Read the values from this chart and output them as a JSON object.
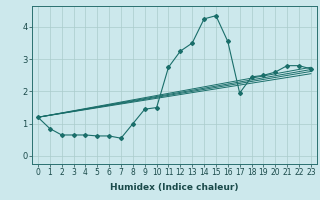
{
  "xlabel": "Humidex (Indice chaleur)",
  "background_color": "#cce8ec",
  "grid_color": "#aacccc",
  "line_color": "#1a6e6a",
  "x_data": [
    0,
    1,
    2,
    3,
    4,
    5,
    6,
    7,
    8,
    9,
    10,
    11,
    12,
    13,
    14,
    15,
    16,
    17,
    18,
    19,
    20,
    21,
    22,
    23
  ],
  "y_main": [
    1.2,
    0.85,
    0.65,
    0.65,
    0.65,
    0.62,
    0.62,
    0.55,
    1.0,
    1.45,
    1.5,
    2.75,
    3.25,
    3.5,
    4.25,
    4.35,
    3.55,
    1.95,
    2.45,
    2.5,
    2.6,
    2.8,
    2.8,
    2.7
  ],
  "line1_start": 1.2,
  "line1_end": 2.55,
  "line2_start": 1.2,
  "line2_end": 2.62,
  "line3_start": 1.2,
  "line3_end": 2.68,
  "line4_start": 1.2,
  "line4_end": 2.75,
  "ylim": [
    -0.25,
    4.65
  ],
  "xlim": [
    -0.5,
    23.5
  ],
  "yticks": [
    0,
    1,
    2,
    3,
    4
  ],
  "xticks": [
    0,
    1,
    2,
    3,
    4,
    5,
    6,
    7,
    8,
    9,
    10,
    11,
    12,
    13,
    14,
    15,
    16,
    17,
    18,
    19,
    20,
    21,
    22,
    23
  ],
  "tick_fontsize": 5.5,
  "xlabel_fontsize": 6.5
}
